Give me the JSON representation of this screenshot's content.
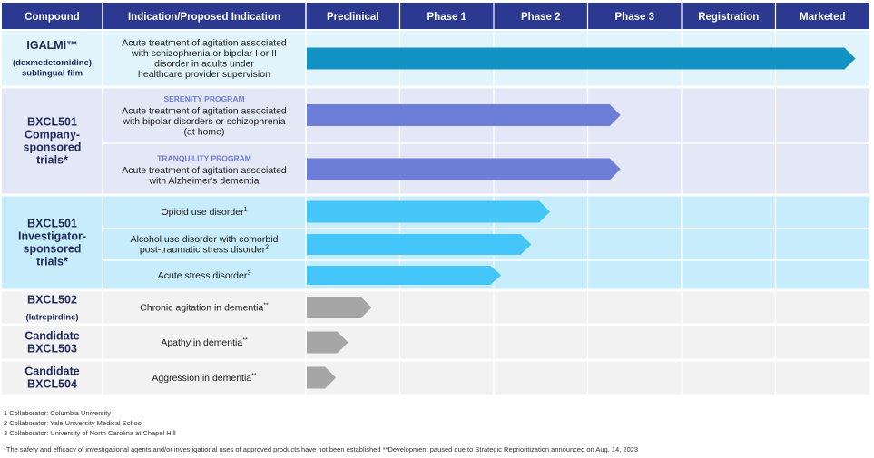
{
  "chart_data": {
    "type": "table",
    "title": "",
    "stages": [
      "Preclinical",
      "Phase 1",
      "Phase 2",
      "Phase 3",
      "Registration",
      "Marketed"
    ],
    "headers": {
      "compound": "Compound",
      "indication": "Indication/Proposed Indication",
      "stages": [
        "Preclinical",
        "Phase 1",
        "Phase 2",
        "Phase 3",
        "Registration",
        "Marketed"
      ]
    },
    "groups": [
      {
        "name_lines": [
          "IGALMI™"
        ],
        "sub_lines": [
          "(dexmedetomidine)",
          "sublingual film"
        ],
        "background": "#e1f3fb",
        "rows": [
          {
            "program": "",
            "indication_lines": [
              "Acute treatment of agitation associated",
              "with schizophrenia or bipolar I or II",
              "disorder in adults under",
              "healthcare provider supervision"
            ],
            "progress_stages": 5.85,
            "bar_color": "#1293c4"
          }
        ]
      },
      {
        "name_lines": [
          "BXCL501",
          "Company-",
          "sponsored",
          "trials*"
        ],
        "sub_lines": [],
        "background": "#e4e7f6",
        "rows": [
          {
            "program": "SERENITY PROGRAM",
            "indication_lines": [
              "Acute treatment of agitation associated",
              "with bipolar disorders or schizophrenia",
              "(at home)"
            ],
            "progress_stages": 3.35,
            "bar_color": "#6c7ed8"
          },
          {
            "program": "TRANQUILITY PROGRAM",
            "indication_lines": [
              "Acute treatment of agitation associated",
              "with Alzheimer's dementia"
            ],
            "progress_stages": 3.35,
            "bar_color": "#6c7ed8"
          }
        ]
      },
      {
        "name_lines": [
          "BXCL501",
          "Investigator-",
          "sponsored",
          "trials*"
        ],
        "sub_lines": [],
        "background": "#c7ecfb",
        "rows": [
          {
            "program": "",
            "indication_lines": [
              "Opioid use disorder"
            ],
            "footnote_ref": "1",
            "progress_stages": 2.6,
            "bar_color": "#44c6f8"
          },
          {
            "program": "",
            "indication_lines": [
              "Alcohol use disorder with comorbid",
              "post-traumatic stress disorder"
            ],
            "footnote_ref": "2",
            "progress_stages": 2.4,
            "bar_color": "#44c6f8"
          },
          {
            "program": "",
            "indication_lines": [
              "Acute stress disorder"
            ],
            "footnote_ref": "3",
            "progress_stages": 2.08,
            "bar_color": "#44c6f8"
          }
        ]
      },
      {
        "name_lines": [
          "BXCL502"
        ],
        "sub_lines": [
          "(latrepirdine)"
        ],
        "background": "#f2f2f2",
        "rows": [
          {
            "program": "",
            "indication_lines": [
              "Chronic agitation in dementia"
            ],
            "footnote_ref": "**",
            "progress_stages": 0.7,
            "bar_color": "#a6a6a6"
          }
        ]
      },
      {
        "name_lines": [
          "Candidate",
          "BXCL503"
        ],
        "sub_lines": [],
        "background": "#f2f2f2",
        "rows": [
          {
            "program": "",
            "indication_lines": [
              "Apathy in dementia"
            ],
            "footnote_ref": "**",
            "progress_stages": 0.45,
            "bar_color": "#a6a6a6"
          }
        ]
      },
      {
        "name_lines": [
          "Candidate",
          "BXCL504"
        ],
        "sub_lines": [],
        "background": "#f2f2f2",
        "rows": [
          {
            "program": "",
            "indication_lines": [
              "Aggression in dementia"
            ],
            "footnote_ref": "**",
            "progress_stages": 0.32,
            "bar_color": "#a6a6a6"
          }
        ]
      }
    ]
  },
  "footnotes": [
    "1 Collaborator: Columbia University",
    "2 Collaborator: Yale University Medical School",
    "3 Collaborator: University of North Carolina at Chapel Hill"
  ],
  "disclaimer": "*The safety and efficacy of investigational agents and/or investigational uses of approved products have not been established  **Development paused due to Strategic Reprioritization announced on Aug. 14, 2023",
  "colors": {
    "header_bg": "#2b3990",
    "header_text": "#ffffff",
    "compound_text": "#1f2a5a",
    "program_text": "#6c7ed8",
    "grid_line": "#ffffff"
  }
}
